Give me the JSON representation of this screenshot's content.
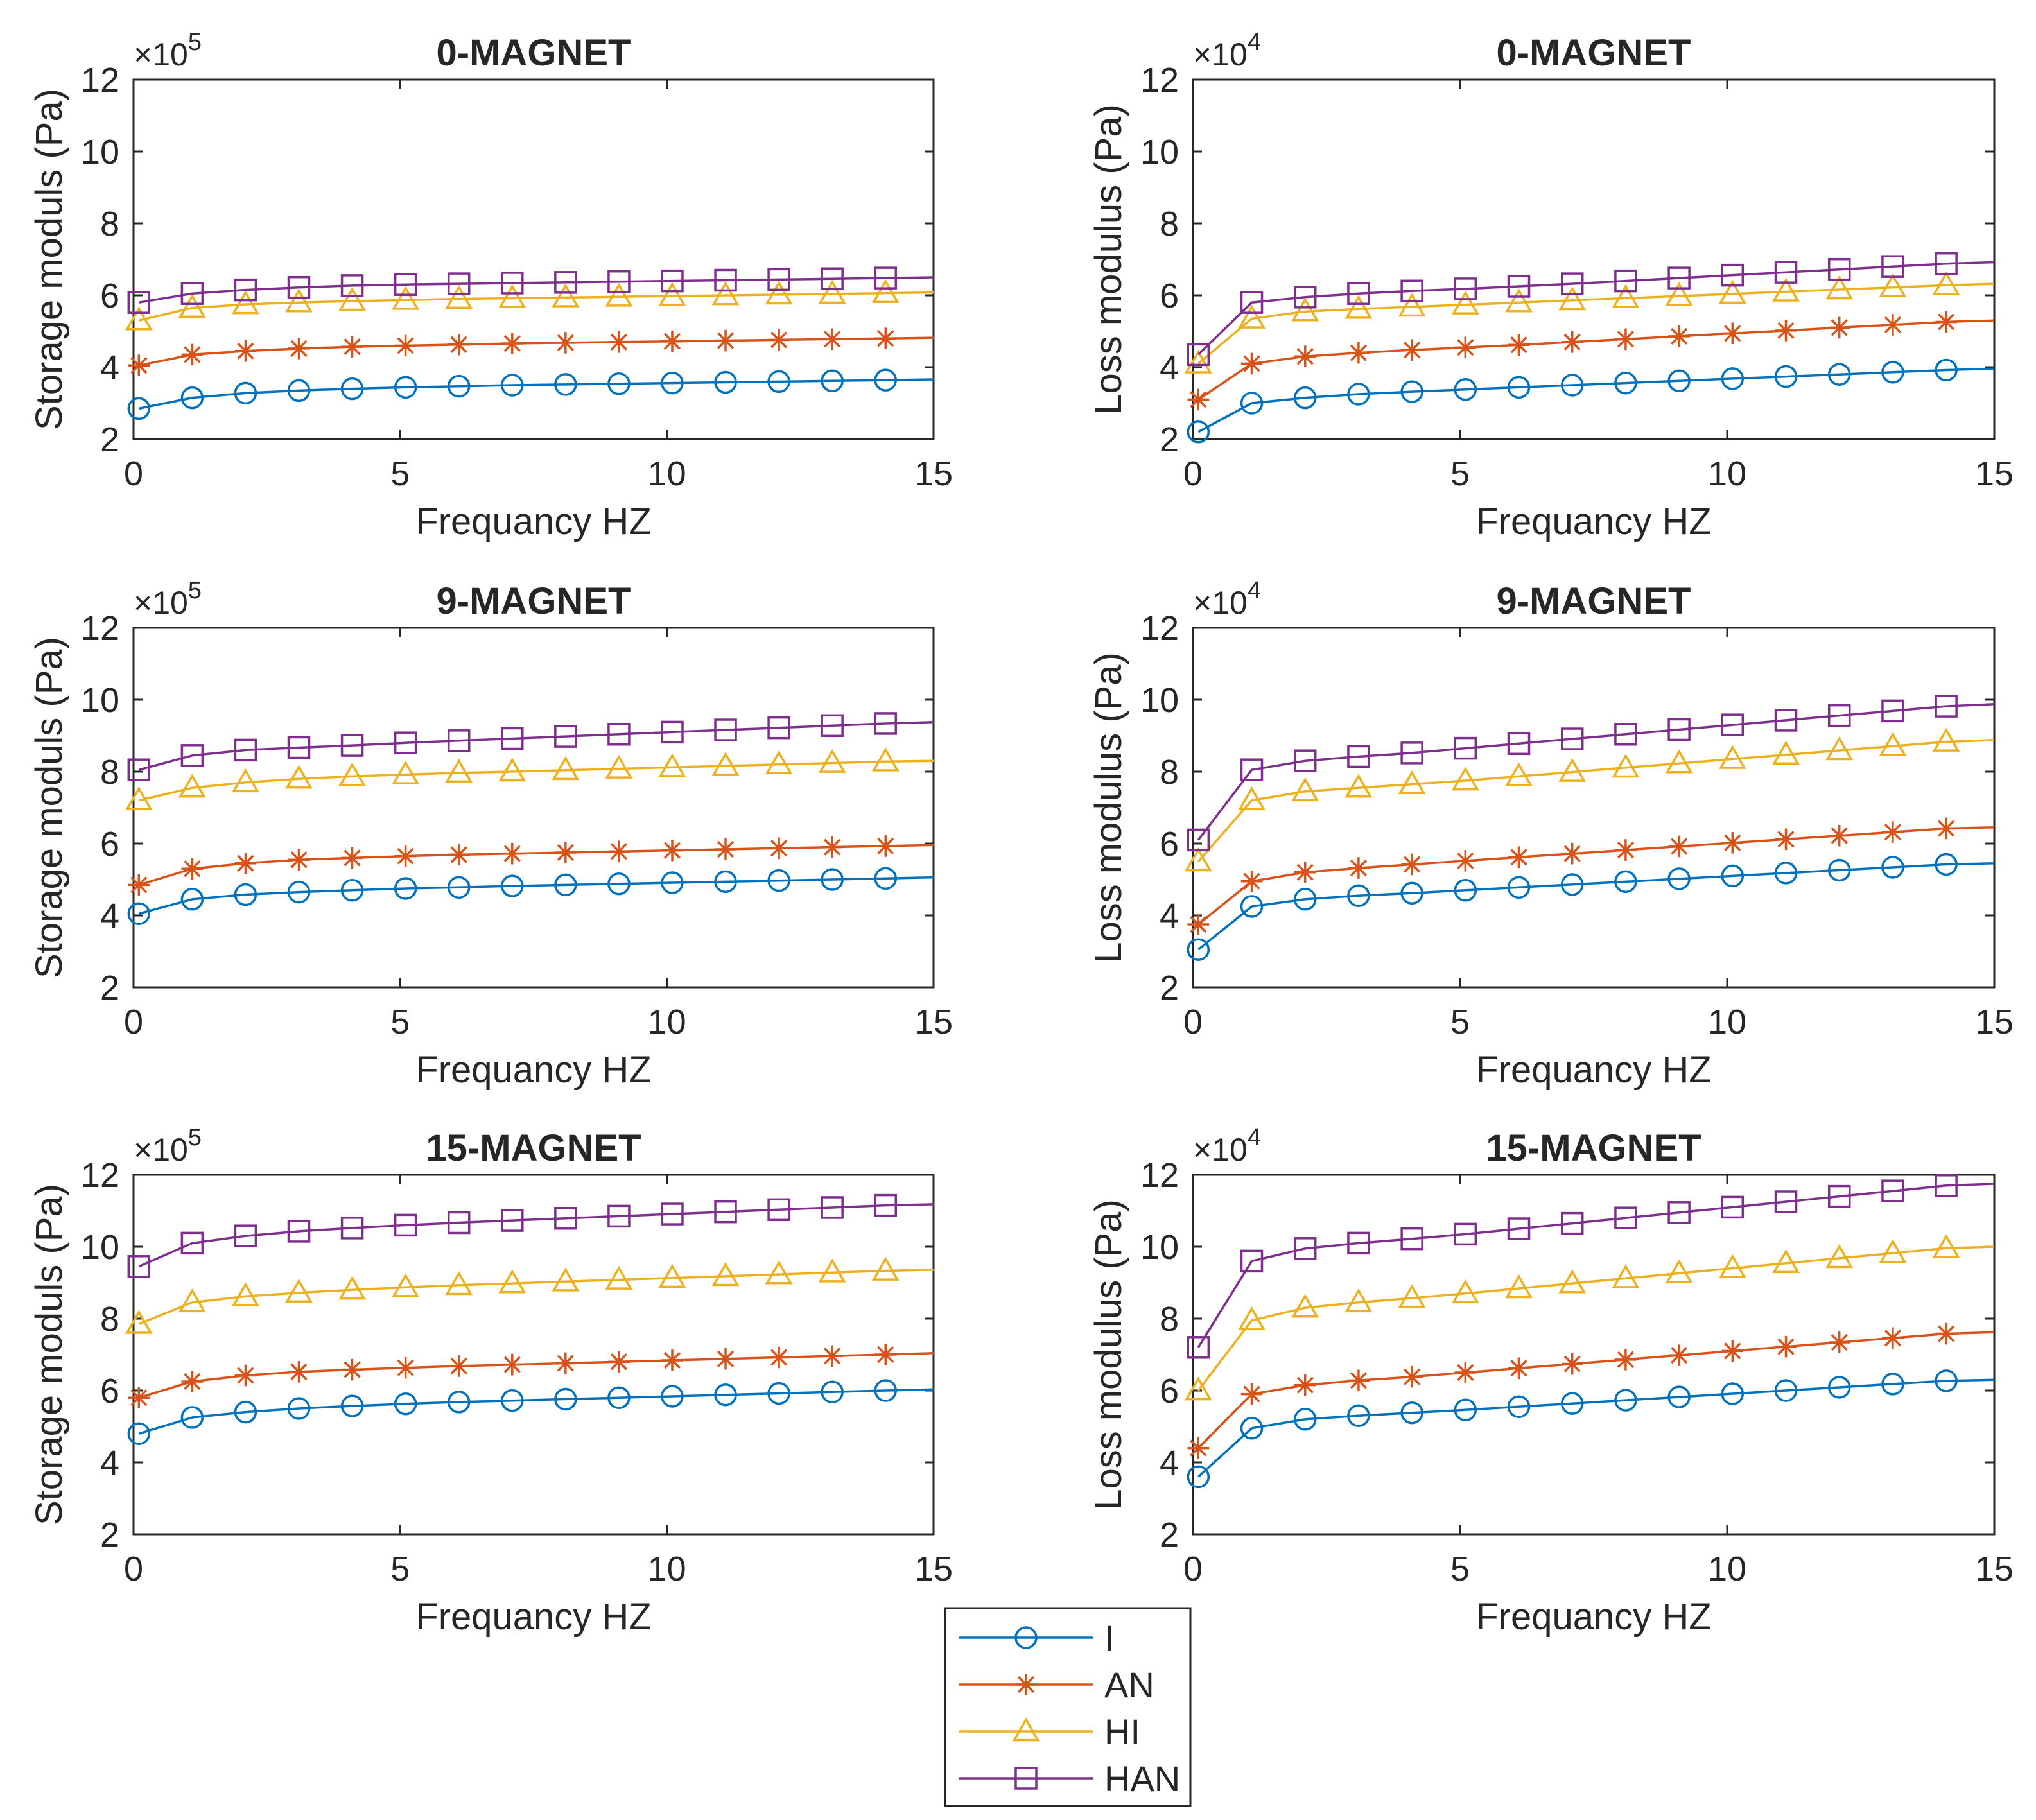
{
  "colors": {
    "I": "#0072BD",
    "AN": "#D95319",
    "HI": "#EDB120",
    "HAN": "#7E2F8E",
    "axes": "#262626",
    "background": "#ffffff"
  },
  "legend": {
    "placement": "below the lower-left plot",
    "entries": [
      {
        "label": "I",
        "marker": "circle"
      },
      {
        "label": "AN",
        "marker": "asterisk"
      },
      {
        "label": "HI",
        "marker": "triangle"
      },
      {
        "label": "HAN",
        "marker": "square"
      }
    ]
  },
  "chart_data": [
    {
      "type": "line",
      "title": "0-MAGNET",
      "xlabel": "Frequancy HZ",
      "ylabel": "Storage moduls (Pa)",
      "multiplier_base": "×10",
      "multiplier_exp": "5",
      "xlim": [
        0,
        15
      ],
      "ylim": [
        2,
        12
      ],
      "xticks": [
        0,
        5,
        10,
        15
      ],
      "yticks": [
        2,
        4,
        6,
        8,
        10,
        12
      ],
      "x": [
        0.1,
        1.1,
        2.1,
        3.1,
        4.1,
        5.1,
        6.1,
        7.1,
        8.1,
        9.1,
        10.1,
        11.1,
        12.1,
        13.1,
        14.1,
        15
      ],
      "series": [
        {
          "name": "I",
          "values": [
            2.85,
            3.15,
            3.28,
            3.35,
            3.4,
            3.44,
            3.47,
            3.5,
            3.52,
            3.54,
            3.56,
            3.58,
            3.6,
            3.62,
            3.64,
            3.66
          ]
        },
        {
          "name": "AN",
          "values": [
            4.05,
            4.35,
            4.45,
            4.52,
            4.57,
            4.6,
            4.63,
            4.66,
            4.68,
            4.7,
            4.72,
            4.74,
            4.76,
            4.78,
            4.8,
            4.82
          ]
        },
        {
          "name": "HI",
          "values": [
            5.3,
            5.65,
            5.75,
            5.8,
            5.84,
            5.87,
            5.9,
            5.92,
            5.94,
            5.96,
            5.98,
            6.0,
            6.02,
            6.04,
            6.06,
            6.08
          ]
        },
        {
          "name": "HAN",
          "values": [
            5.8,
            6.05,
            6.15,
            6.22,
            6.27,
            6.3,
            6.32,
            6.34,
            6.36,
            6.38,
            6.4,
            6.42,
            6.44,
            6.46,
            6.48,
            6.5
          ]
        }
      ]
    },
    {
      "type": "line",
      "title": "0-MAGNET",
      "xlabel": "Frequancy HZ",
      "ylabel": "Loss modulus (Pa)",
      "multiplier_base": "×10",
      "multiplier_exp": "4",
      "xlim": [
        0,
        15
      ],
      "ylim": [
        2,
        12
      ],
      "xticks": [
        0,
        5,
        10,
        15
      ],
      "yticks": [
        2,
        4,
        6,
        8,
        10,
        12
      ],
      "x": [
        0.1,
        1.1,
        2.1,
        3.1,
        4.1,
        5.1,
        6.1,
        7.1,
        8.1,
        9.1,
        10.1,
        11.1,
        12.1,
        13.1,
        14.1,
        15
      ],
      "series": [
        {
          "name": "I",
          "values": [
            2.2,
            3.0,
            3.15,
            3.25,
            3.32,
            3.38,
            3.44,
            3.5,
            3.56,
            3.62,
            3.68,
            3.74,
            3.8,
            3.86,
            3.92,
            3.96
          ]
        },
        {
          "name": "AN",
          "values": [
            3.1,
            4.1,
            4.3,
            4.4,
            4.48,
            4.55,
            4.62,
            4.7,
            4.78,
            4.86,
            4.94,
            5.02,
            5.1,
            5.18,
            5.26,
            5.3
          ]
        },
        {
          "name": "HI",
          "values": [
            4.1,
            5.35,
            5.55,
            5.62,
            5.68,
            5.74,
            5.8,
            5.86,
            5.92,
            5.98,
            6.04,
            6.1,
            6.16,
            6.22,
            6.28,
            6.32
          ]
        },
        {
          "name": "HAN",
          "values": [
            4.35,
            5.8,
            5.95,
            6.05,
            6.12,
            6.18,
            6.25,
            6.32,
            6.4,
            6.48,
            6.56,
            6.64,
            6.72,
            6.8,
            6.88,
            6.92
          ]
        }
      ]
    },
    {
      "type": "line",
      "title": "9-MAGNET",
      "xlabel": "Frequancy HZ",
      "ylabel": "Storage moduls (Pa)",
      "multiplier_base": "×10",
      "multiplier_exp": "5",
      "xlim": [
        0,
        15
      ],
      "ylim": [
        2,
        12
      ],
      "xticks": [
        0,
        5,
        10,
        15
      ],
      "yticks": [
        2,
        4,
        6,
        8,
        10,
        12
      ],
      "x": [
        0.1,
        1.1,
        2.1,
        3.1,
        4.1,
        5.1,
        6.1,
        7.1,
        8.1,
        9.1,
        10.1,
        11.1,
        12.1,
        13.1,
        14.1,
        15
      ],
      "series": [
        {
          "name": "I",
          "values": [
            4.05,
            4.45,
            4.58,
            4.65,
            4.7,
            4.75,
            4.78,
            4.82,
            4.85,
            4.88,
            4.91,
            4.94,
            4.97,
            5.0,
            5.03,
            5.06
          ]
        },
        {
          "name": "AN",
          "values": [
            4.85,
            5.3,
            5.45,
            5.55,
            5.6,
            5.65,
            5.69,
            5.72,
            5.75,
            5.78,
            5.81,
            5.84,
            5.87,
            5.9,
            5.93,
            5.96
          ]
        },
        {
          "name": "HI",
          "values": [
            7.2,
            7.55,
            7.7,
            7.8,
            7.87,
            7.92,
            7.97,
            8.0,
            8.04,
            8.08,
            8.12,
            8.16,
            8.2,
            8.24,
            8.28,
            8.3
          ]
        },
        {
          "name": "HAN",
          "values": [
            8.05,
            8.45,
            8.6,
            8.67,
            8.73,
            8.8,
            8.86,
            8.92,
            8.98,
            9.04,
            9.1,
            9.16,
            9.22,
            9.28,
            9.34,
            9.38
          ]
        }
      ]
    },
    {
      "type": "line",
      "title": "9-MAGNET",
      "xlabel": "Frequancy HZ",
      "ylabel": "Loss modulus (Pa)",
      "multiplier_base": "×10",
      "multiplier_exp": "4",
      "xlim": [
        0,
        15
      ],
      "ylim": [
        2,
        12
      ],
      "xticks": [
        0,
        5,
        10,
        15
      ],
      "yticks": [
        2,
        4,
        6,
        8,
        10,
        12
      ],
      "x": [
        0.1,
        1.1,
        2.1,
        3.1,
        4.1,
        5.1,
        6.1,
        7.1,
        8.1,
        9.1,
        10.1,
        11.1,
        12.1,
        13.1,
        14.1,
        15
      ],
      "series": [
        {
          "name": "I",
          "values": [
            3.05,
            4.25,
            4.45,
            4.55,
            4.62,
            4.7,
            4.78,
            4.86,
            4.94,
            5.02,
            5.1,
            5.18,
            5.26,
            5.34,
            5.42,
            5.45
          ]
        },
        {
          "name": "AN",
          "values": [
            3.75,
            4.95,
            5.2,
            5.32,
            5.42,
            5.52,
            5.62,
            5.72,
            5.82,
            5.92,
            6.02,
            6.12,
            6.22,
            6.32,
            6.42,
            6.45
          ]
        },
        {
          "name": "HI",
          "values": [
            5.5,
            7.2,
            7.45,
            7.55,
            7.65,
            7.75,
            7.87,
            7.99,
            8.11,
            8.23,
            8.35,
            8.47,
            8.59,
            8.71,
            8.83,
            8.88
          ]
        },
        {
          "name": "HAN",
          "values": [
            6.1,
            8.05,
            8.3,
            8.42,
            8.52,
            8.65,
            8.78,
            8.91,
            9.04,
            9.17,
            9.3,
            9.43,
            9.56,
            9.69,
            9.82,
            9.88
          ]
        }
      ]
    },
    {
      "type": "line",
      "title": "15-MAGNET",
      "xlabel": "Frequancy HZ",
      "ylabel": "Storage moduls (Pa)",
      "multiplier_base": "×10",
      "multiplier_exp": "5",
      "xlim": [
        0,
        15
      ],
      "ylim": [
        2,
        12
      ],
      "xticks": [
        0,
        5,
        10,
        15
      ],
      "yticks": [
        2,
        4,
        6,
        8,
        10,
        12
      ],
      "x": [
        0.1,
        1.1,
        2.1,
        3.1,
        4.1,
        5.1,
        6.1,
        7.1,
        8.1,
        9.1,
        10.1,
        11.1,
        12.1,
        13.1,
        14.1,
        15
      ],
      "series": [
        {
          "name": "I",
          "values": [
            4.8,
            5.25,
            5.4,
            5.5,
            5.57,
            5.63,
            5.68,
            5.72,
            5.76,
            5.8,
            5.84,
            5.88,
            5.92,
            5.96,
            6.0,
            6.03
          ]
        },
        {
          "name": "AN",
          "values": [
            5.8,
            6.25,
            6.42,
            6.52,
            6.58,
            6.63,
            6.68,
            6.72,
            6.76,
            6.8,
            6.84,
            6.88,
            6.92,
            6.96,
            7.0,
            7.04
          ]
        },
        {
          "name": "HI",
          "values": [
            7.85,
            8.45,
            8.62,
            8.72,
            8.8,
            8.87,
            8.93,
            8.98,
            9.03,
            9.08,
            9.13,
            9.18,
            9.23,
            9.28,
            9.33,
            9.36
          ]
        },
        {
          "name": "HAN",
          "values": [
            9.45,
            10.1,
            10.3,
            10.43,
            10.52,
            10.6,
            10.67,
            10.73,
            10.79,
            10.85,
            10.91,
            10.97,
            11.03,
            11.09,
            11.15,
            11.18
          ]
        }
      ]
    },
    {
      "type": "line",
      "title": "15-MAGNET",
      "xlabel": "Frequancy HZ",
      "ylabel": "Loss modulus (Pa)",
      "multiplier_base": "×10",
      "multiplier_exp": "4",
      "xlim": [
        0,
        15
      ],
      "ylim": [
        2,
        12
      ],
      "xticks": [
        0,
        5,
        10,
        15
      ],
      "yticks": [
        2,
        4,
        6,
        8,
        10,
        12
      ],
      "x": [
        0.1,
        1.1,
        2.1,
        3.1,
        4.1,
        5.1,
        6.1,
        7.1,
        8.1,
        9.1,
        10.1,
        11.1,
        12.1,
        13.1,
        14.1,
        15
      ],
      "series": [
        {
          "name": "I",
          "values": [
            3.6,
            4.95,
            5.2,
            5.3,
            5.38,
            5.46,
            5.55,
            5.64,
            5.73,
            5.82,
            5.91,
            6.0,
            6.09,
            6.18,
            6.27,
            6.3
          ]
        },
        {
          "name": "AN",
          "values": [
            4.4,
            5.9,
            6.15,
            6.28,
            6.38,
            6.5,
            6.62,
            6.74,
            6.86,
            6.98,
            7.1,
            7.22,
            7.34,
            7.46,
            7.58,
            7.62
          ]
        },
        {
          "name": "HI",
          "values": [
            6.0,
            7.95,
            8.3,
            8.45,
            8.57,
            8.7,
            8.84,
            8.98,
            9.12,
            9.26,
            9.4,
            9.54,
            9.68,
            9.82,
            9.96,
            10.0
          ]
        },
        {
          "name": "HAN",
          "values": [
            7.2,
            9.6,
            9.95,
            10.1,
            10.22,
            10.35,
            10.5,
            10.65,
            10.8,
            10.95,
            11.1,
            11.25,
            11.4,
            11.55,
            11.7,
            11.75
          ]
        }
      ]
    }
  ]
}
